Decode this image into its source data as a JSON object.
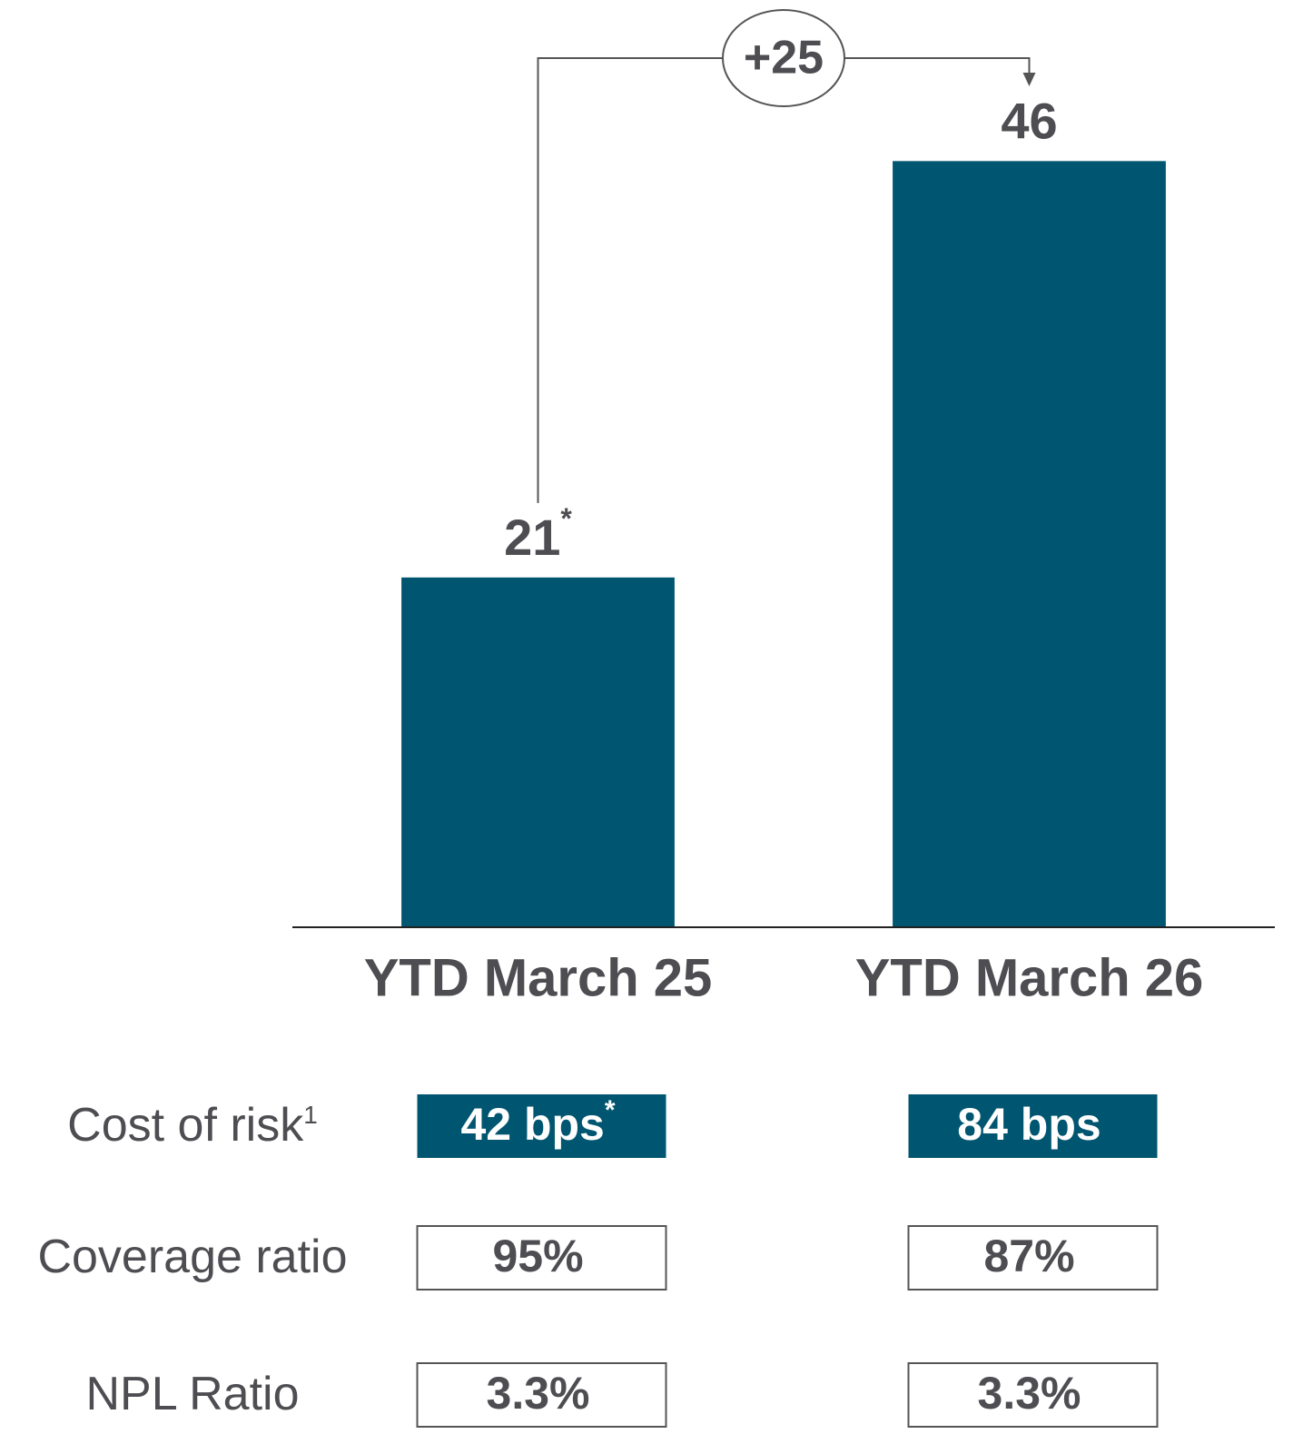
{
  "chart_data": {
    "type": "bar",
    "categories": [
      "YTD March 25",
      "YTD March 26"
    ],
    "values": [
      21,
      46
    ],
    "value_notes": [
      "*",
      null
    ],
    "color": "#005670",
    "ylim": [
      0,
      50
    ],
    "change_label": "+25"
  },
  "table": {
    "rows": [
      {
        "label": "Cost of risk",
        "note": "1",
        "highlight": true,
        "cells": [
          {
            "text": "42 bps",
            "note": "*"
          },
          {
            "text": "84 bps"
          }
        ]
      },
      {
        "label": "Coverage ratio",
        "cells": [
          {
            "text": "95%"
          },
          {
            "text": "87%"
          }
        ]
      },
      {
        "label": "NPL Ratio",
        "cells": [
          {
            "text": "3.3%"
          },
          {
            "text": "3.3%"
          }
        ]
      }
    ]
  }
}
